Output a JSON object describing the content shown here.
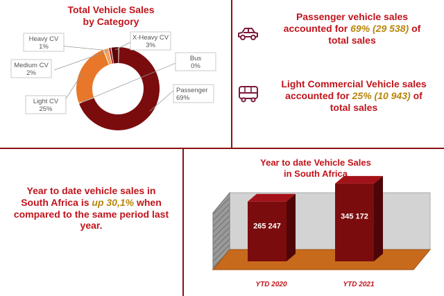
{
  "colors": {
    "accent_red": "#c0141b",
    "divider": "#8b0f12",
    "highlight": "#b8860b",
    "passenger": "#7b0c0e",
    "light_cv": "#e8772a",
    "medium_cv": "#f2a55d",
    "heavy_cv": "#a8171c",
    "xheavy_cv": "#5c0608",
    "bus": "#c94b4b",
    "icon": "#7a1a3a"
  },
  "panel_pie": {
    "title_line1": "Total Vehicle Sales",
    "title_line2": "by Category"
  },
  "panel_passenger": {
    "icon": "car-icon",
    "line1": "Passenger vehicle sales",
    "line2_pre": "accounted for ",
    "line2_hl": "69% (29 538)",
    "line2_post": " of",
    "line3": "total sales"
  },
  "panel_lcv": {
    "icon": "bus-icon",
    "line1": "Light Commercial Vehicle sales",
    "line2_pre": "accounted for ",
    "line2_hl": "25% (10 943)",
    "line2_post": " of",
    "line3": "total sales"
  },
  "panel_growth": {
    "line1": "Year to date vehicle sales in",
    "line2_pre": "South Africa is ",
    "line2_hl": "up 30,1%",
    "line2_post": " when",
    "line3": "compared to the same period last",
    "line4": "year."
  },
  "panel_bar": {
    "title_line1": "Year to date Vehicle Sales",
    "title_line2": "in South Africa"
  },
  "chart_data": [
    {
      "type": "pie",
      "title": "Total Vehicle Sales by Category",
      "categories": [
        "Passenger",
        "Light CV",
        "Medium CV",
        "Heavy CV",
        "X-Heavy CV",
        "Bus"
      ],
      "values": [
        69,
        25,
        2,
        1,
        3,
        0
      ],
      "labels": [
        "69%",
        "25%",
        "2%",
        "1%",
        "3%",
        "0%"
      ]
    },
    {
      "type": "bar",
      "title": "Year to date Vehicle Sales in South Africa",
      "categories": [
        "YTD 2020",
        "YTD 2021"
      ],
      "values": [
        265247,
        345172
      ],
      "value_labels": [
        "265 247",
        "345 172"
      ],
      "grid": false
    }
  ]
}
